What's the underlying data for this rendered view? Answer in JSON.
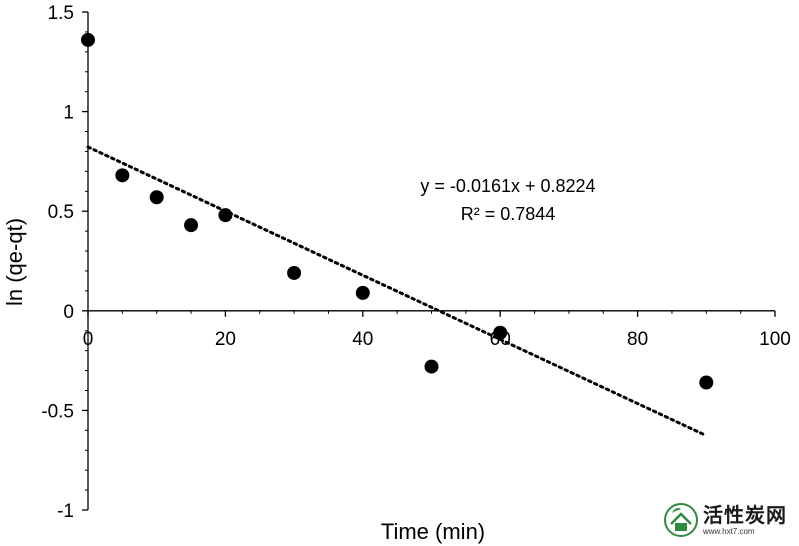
{
  "chart_data": {
    "type": "scatter",
    "xlabel": "Time (min)",
    "ylabel": "ln (qe-qt)",
    "xlim": [
      0,
      100
    ],
    "ylim": [
      -1,
      1.5
    ],
    "x_ticks": [
      0,
      20,
      40,
      60,
      80,
      100
    ],
    "y_ticks": [
      -1,
      -0.5,
      0,
      0.5,
      1,
      1.5
    ],
    "x_tick_labels": [
      "0",
      "20",
      "40",
      "60",
      "80",
      "100"
    ],
    "y_tick_labels": [
      "-1",
      "-0.5",
      "0",
      "0.5",
      "1",
      "1.5"
    ],
    "series": [
      {
        "marker": "filled-circle",
        "color": "#000000",
        "points": [
          {
            "x": 0,
            "y": 1.36
          },
          {
            "x": 5,
            "y": 0.68
          },
          {
            "x": 10,
            "y": 0.57
          },
          {
            "x": 15,
            "y": 0.43
          },
          {
            "x": 20,
            "y": 0.48
          },
          {
            "x": 30,
            "y": 0.19
          },
          {
            "x": 40,
            "y": 0.09
          },
          {
            "x": 50,
            "y": -0.28
          },
          {
            "x": 60,
            "y": -0.11
          },
          {
            "x": 90,
            "y": -0.36
          }
        ]
      }
    ],
    "trendline": {
      "type": "linear",
      "style": "dotted",
      "color": "#000000",
      "slope": -0.0161,
      "intercept": 0.8224,
      "x_range": [
        0,
        90
      ],
      "equation_label": "y = -0.0161x + 0.8224",
      "r2_label": "R² = 0.7844"
    },
    "grid": false,
    "legend": "none"
  },
  "watermark": {
    "text": "活性炭网",
    "url": "www.hxt7.com"
  },
  "colors": {
    "axis": "#000000",
    "marker": "#000000",
    "watermark_green": "#2e8b3d"
  }
}
